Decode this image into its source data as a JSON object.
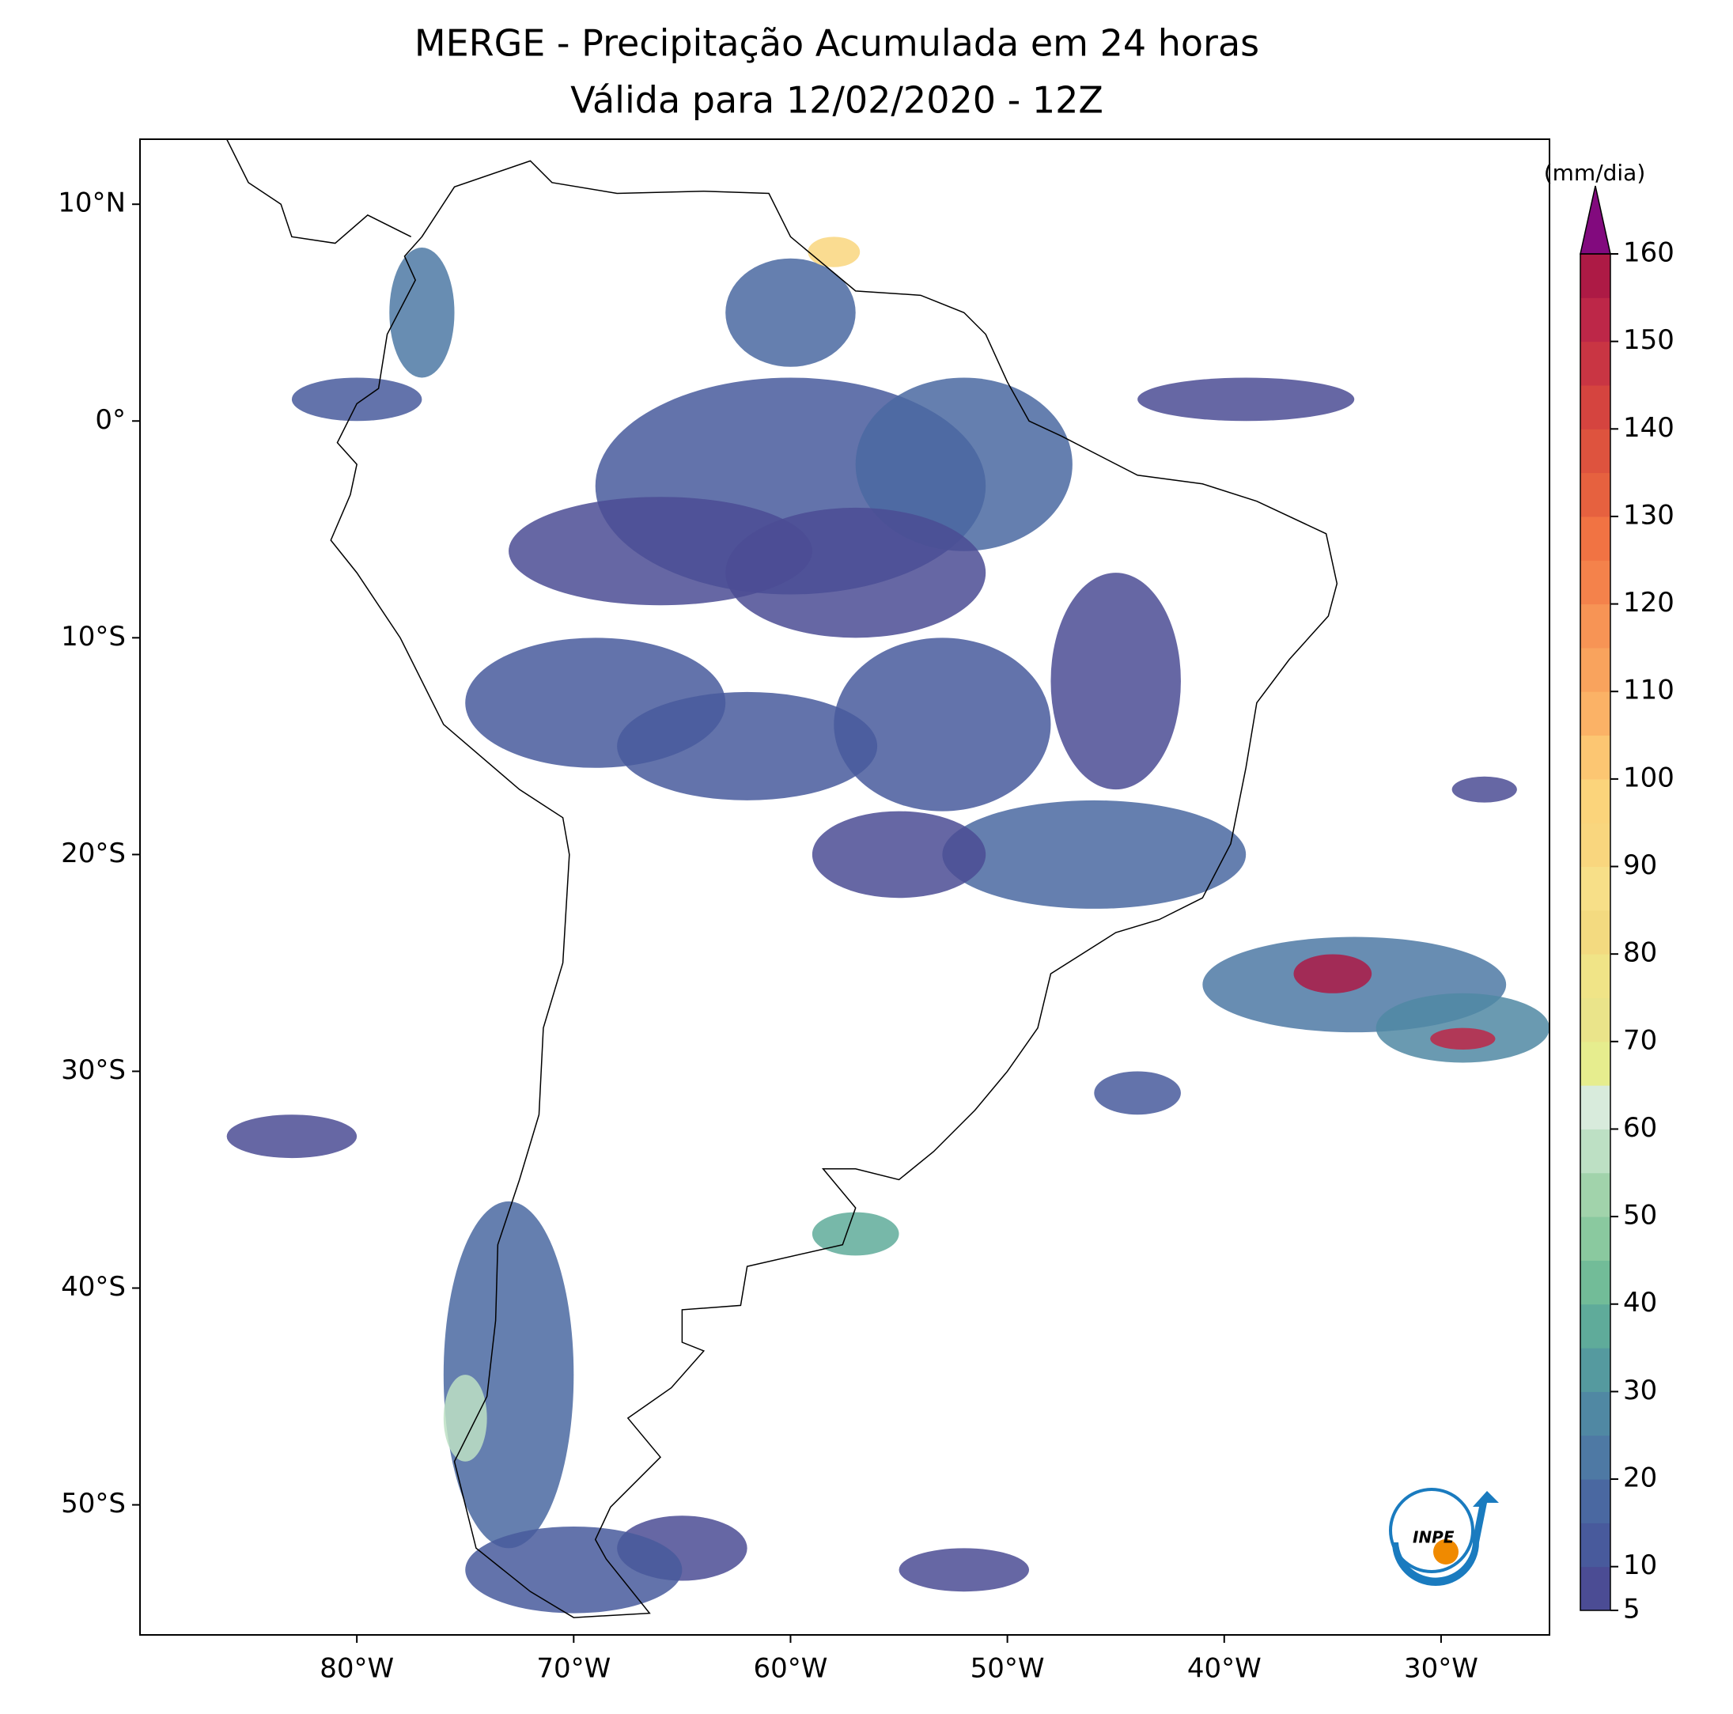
{
  "title": "MERGE - Precipitação Acumulada em 24 horas",
  "subtitle": "Válida para 12/02/2020 - 12Z",
  "map": {
    "xlim": [
      -90,
      -25
    ],
    "ylim": [
      -56,
      13
    ],
    "xticks": [
      {
        "value": -80,
        "label": "80°W"
      },
      {
        "value": -70,
        "label": "70°W"
      },
      {
        "value": -60,
        "label": "60°W"
      },
      {
        "value": -50,
        "label": "50°W"
      },
      {
        "value": -40,
        "label": "40°W"
      },
      {
        "value": -30,
        "label": "30°W"
      }
    ],
    "yticks": [
      {
        "value": 10,
        "label": "10°N"
      },
      {
        "value": 0,
        "label": "0°"
      },
      {
        "value": -10,
        "label": "10°S"
      },
      {
        "value": -20,
        "label": "20°S"
      },
      {
        "value": -30,
        "label": "30°S"
      },
      {
        "value": -40,
        "label": "40°S"
      },
      {
        "value": -50,
        "label": "50°S"
      }
    ]
  },
  "colorbar": {
    "label": "(mm/dia)",
    "levels": [
      5,
      10,
      15,
      20,
      25,
      30,
      35,
      40,
      45,
      50,
      55,
      60,
      65,
      70,
      75,
      80,
      85,
      90,
      95,
      100,
      105,
      110,
      115,
      120,
      125,
      130,
      135,
      140,
      145,
      150,
      155,
      160
    ],
    "colors": [
      "#4b4c94",
      "#485a9c",
      "#4a68a1",
      "#4e79a4",
      "#5088a3",
      "#559a9f",
      "#5fab9a",
      "#72bc98",
      "#8ac99f",
      "#a1d3ab",
      "#bde0c4",
      "#d8ebdc",
      "#e6ed8e",
      "#eae48a",
      "#f0e487",
      "#f3da80",
      "#f7df88",
      "#f9d67e",
      "#fbd47b",
      "#fcc672",
      "#fbb266",
      "#f9a35d",
      "#f79455",
      "#f4824b",
      "#f17343",
      "#e6613f",
      "#de533e",
      "#d5443f",
      "#c93543",
      "#bd2748",
      "#ad1a45"
    ],
    "extend_color": "#820a7e",
    "ticks": [
      5,
      10,
      20,
      30,
      40,
      50,
      60,
      70,
      80,
      90,
      100,
      110,
      120,
      130,
      140,
      150,
      160
    ]
  },
  "logo_text": "INPE"
}
